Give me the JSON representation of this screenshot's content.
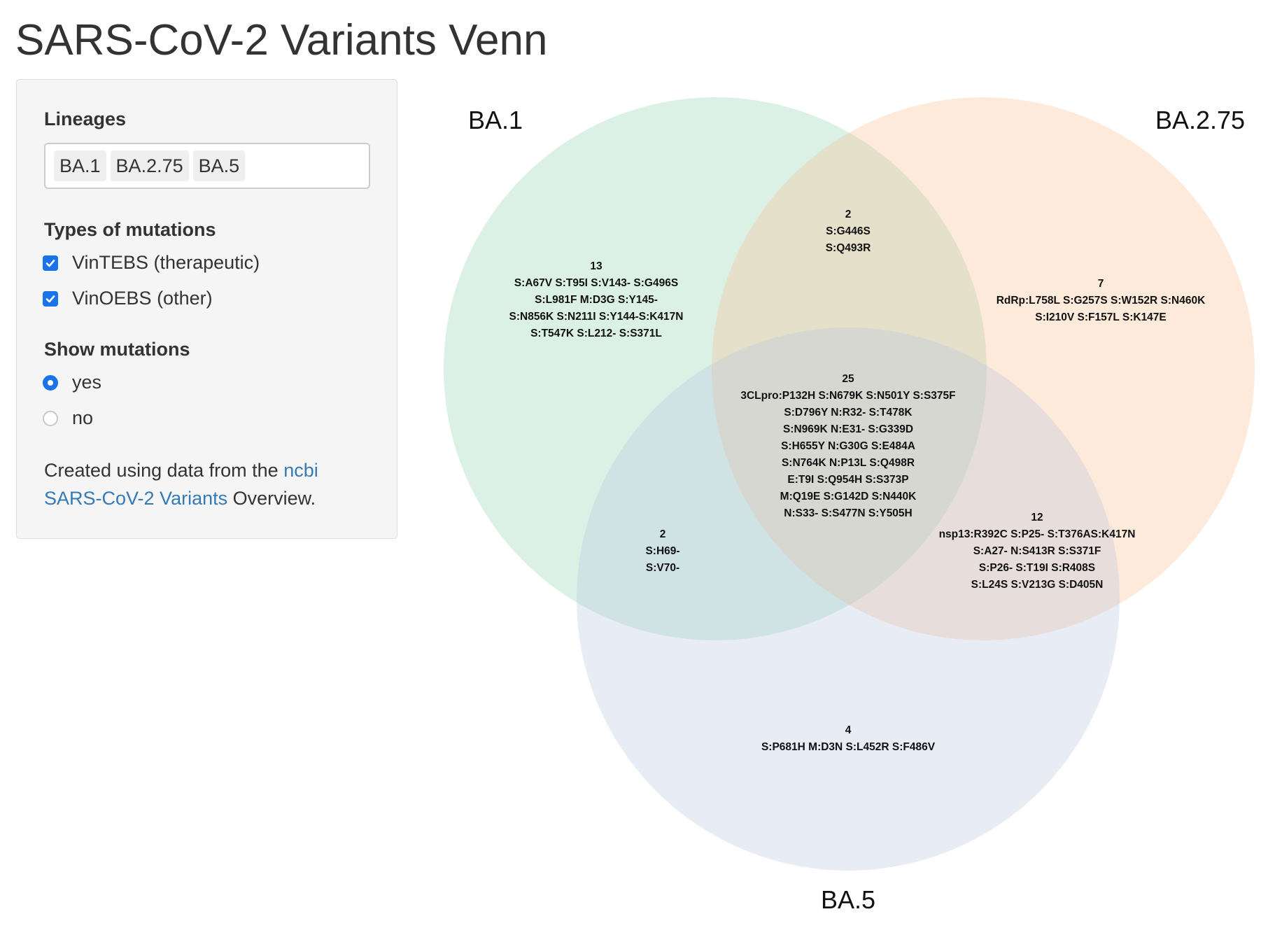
{
  "title": "SARS-CoV-2 Variants Venn",
  "sidebar": {
    "lineages_label": "Lineages",
    "lineages": [
      "BA.1",
      "BA.2.75",
      "BA.5"
    ],
    "types_label": "Types of mutations",
    "types": [
      {
        "label": "VinTEBS (therapeutic)",
        "checked": true
      },
      {
        "label": "VinOEBS (other)",
        "checked": true
      }
    ],
    "show_label": "Show mutations",
    "show_options": [
      {
        "label": "yes",
        "selected": true
      },
      {
        "label": "no",
        "selected": false
      }
    ],
    "credit": {
      "prefix": "Created using data from the",
      "link1": "ncbi",
      "link2": "SARS-CoV-2 Variants",
      "suffix": "Overview."
    }
  },
  "venn": {
    "sets": [
      {
        "name": "BA.1",
        "color": "#8fd4b1"
      },
      {
        "name": "BA.2.75",
        "color": "#fdbd8e"
      },
      {
        "name": "BA.5",
        "color": "#b9c3e0"
      }
    ],
    "regions": {
      "ba1_only": {
        "count": "13",
        "lines": [
          "S:A67V S:T95I S:V143- S:G496S",
          "S:L981F M:D3G S:Y145-",
          "S:N856K S:N211I S:Y144-S:K417N",
          "S:T547K S:L212- S:S371L"
        ]
      },
      "ba1_ba275": {
        "count": "2",
        "lines": [
          "S:G446S",
          "S:Q493R"
        ]
      },
      "ba275_only": {
        "count": "7",
        "lines": [
          "RdRp:L758L S:G257S S:W152R S:N460K",
          "S:I210V S:F157L S:K147E"
        ]
      },
      "all": {
        "count": "25",
        "lines": [
          "3CLpro:P132H S:N679K S:N501Y S:S375F",
          "S:D796Y N:R32- S:T478K",
          "S:N969K N:E31- S:G339D",
          "S:H655Y N:G30G S:E484A",
          "S:N764K N:P13L S:Q498R",
          "E:T9I S:Q954H S:S373P",
          "M:Q19E S:G142D S:N440K",
          "N:S33- S:S477N S:Y505H"
        ]
      },
      "ba275_ba5": {
        "count": "12",
        "lines": [
          "nsp13:R392C S:P25- S:T376AS:K417N",
          "S:A27- N:S413R S:S371F",
          "S:P26- S:T19I S:R408S",
          "S:L24S S:V213G S:D405N"
        ]
      },
      "ba1_ba5": {
        "count": "2",
        "lines": [
          "S:H69-",
          "S:V70-"
        ]
      },
      "ba5_only": {
        "count": "4",
        "lines": [
          "S:P681H M:D3N S:L452R S:F486V"
        ]
      }
    }
  }
}
